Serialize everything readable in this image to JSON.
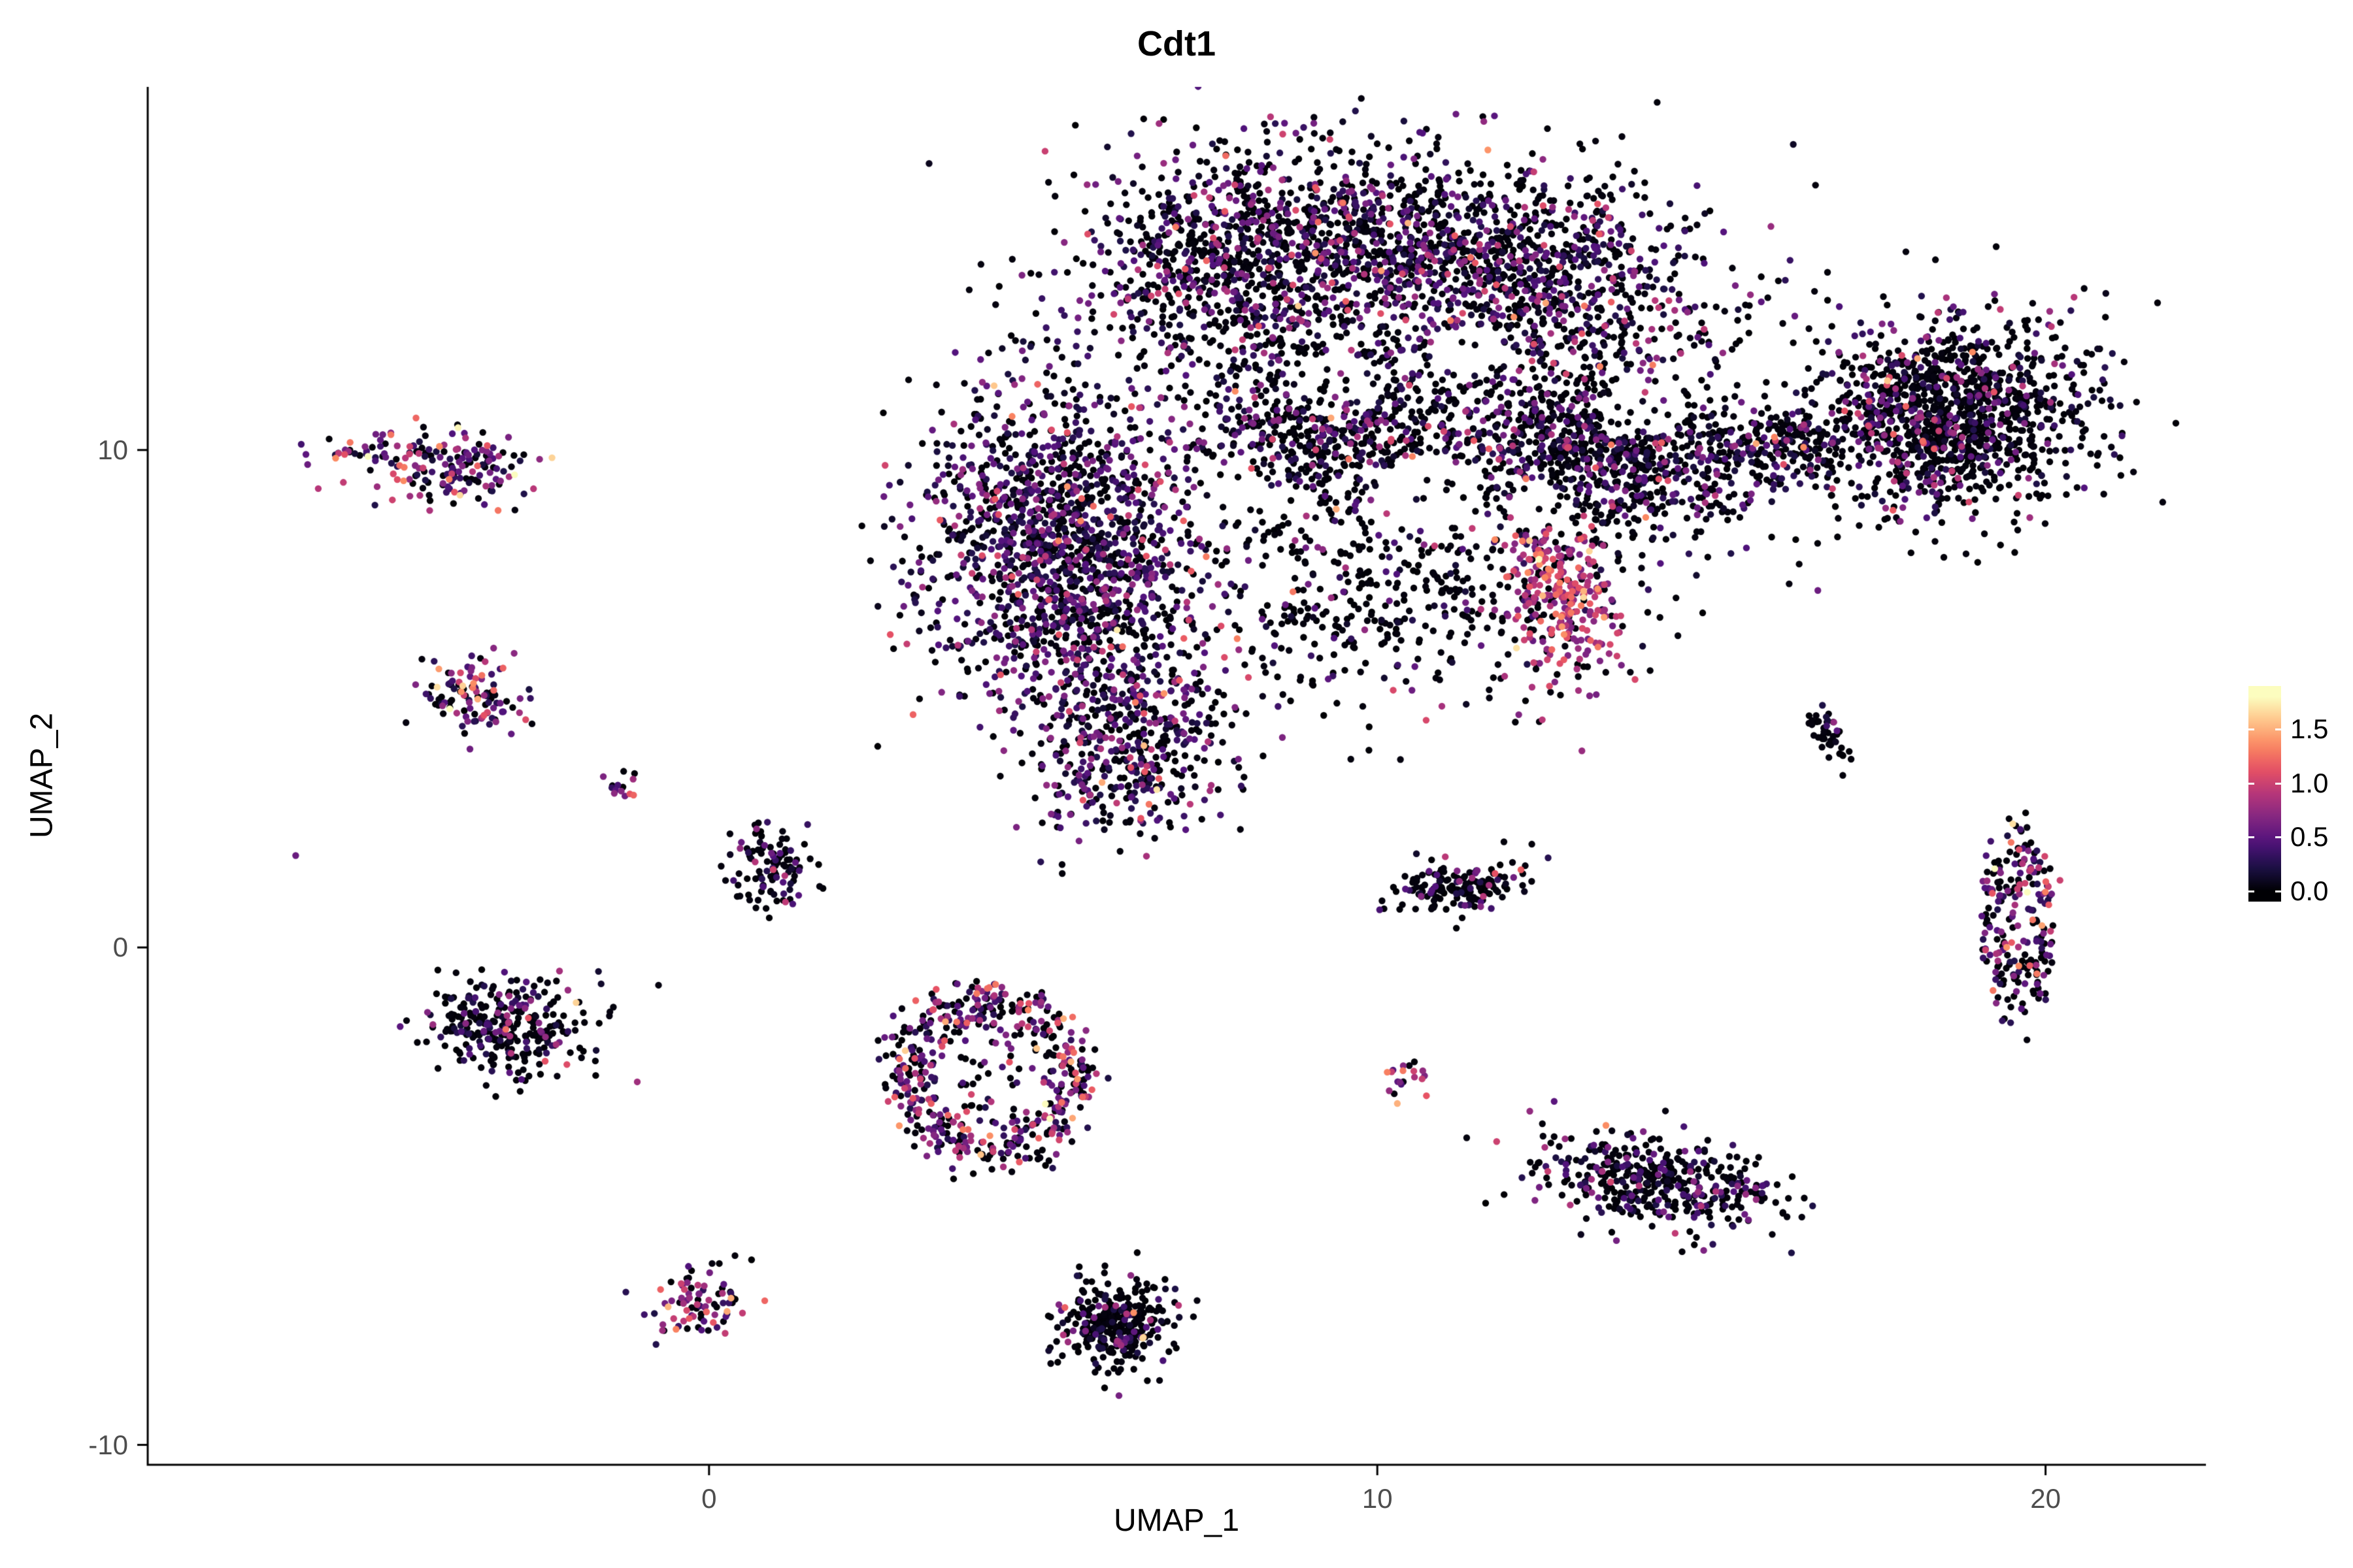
{
  "figure": {
    "background": "#ffffff"
  },
  "chart_data": {
    "type": "scatter",
    "title": "Cdt1",
    "xlabel": "UMAP_1",
    "ylabel": "UMAP_2",
    "xlim": [
      -8.4,
      22.4
    ],
    "ylim": [
      -10.4,
      17.3
    ],
    "grid": false,
    "legend_position": "right",
    "point_radius": 5.2,
    "seed": 42,
    "value_domain": [
      0,
      1.8
    ],
    "xticks": [
      {
        "label": "0",
        "value": 0
      },
      {
        "label": "10",
        "value": 10
      },
      {
        "label": "20",
        "value": 20
      }
    ],
    "yticks": [
      {
        "label": "-10",
        "value": -10
      },
      {
        "label": "0",
        "value": 0
      },
      {
        "label": "10",
        "value": 10
      }
    ],
    "colormap": {
      "name": "magma",
      "stops": [
        [
          0.0,
          "#000004"
        ],
        [
          0.125,
          "#1d1147"
        ],
        [
          0.25,
          "#51127c"
        ],
        [
          0.375,
          "#822681"
        ],
        [
          0.5,
          "#b63679"
        ],
        [
          0.625,
          "#e65164"
        ],
        [
          0.75,
          "#fb8861"
        ],
        [
          0.875,
          "#fec489"
        ],
        [
          1.0,
          "#fcfdbf"
        ]
      ]
    },
    "colorbar": {
      "range": [
        -0.1,
        1.9
      ],
      "ticks": [
        {
          "label": "1.5",
          "value": 1.5
        },
        {
          "label": "1.0",
          "value": 1.0
        },
        {
          "label": "0.5",
          "value": 0.5
        },
        {
          "label": "0.0",
          "value": 0.0
        }
      ]
    },
    "voids": [
      {
        "center": [
          9.4,
          11.3
        ],
        "r": 0.7
      },
      {
        "center": [
          14.0,
          10.9
        ],
        "r": 0.65
      },
      {
        "center": [
          11.4,
          12.0
        ],
        "r": 0.5
      },
      {
        "center": [
          10.8,
          9.2
        ],
        "r": 0.75
      },
      {
        "center": [
          12.4,
          8.9
        ],
        "r": 0.45
      }
    ],
    "clusters": [
      {
        "name": "main-top-left-arc",
        "shape": "blob",
        "center": [
          8.3,
          13.9
        ],
        "sx": 1.5,
        "sy": 1.1,
        "rot": 15,
        "n": 1200,
        "expr": {
          "p0": 0.55
        }
      },
      {
        "name": "main-top-right-arc",
        "shape": "blob",
        "center": [
          12.0,
          13.6
        ],
        "sx": 1.6,
        "sy": 1.0,
        "rot": -15,
        "n": 1200,
        "expr": {
          "p0": 0.58
        }
      },
      {
        "name": "main-left-lobe",
        "shape": "blob",
        "center": [
          5.3,
          8.0
        ],
        "sx": 1.0,
        "sy": 1.7,
        "rot": 5,
        "n": 1600,
        "expr": {
          "p0": 0.45
        }
      },
      {
        "name": "main-mid-right",
        "shape": "blob",
        "center": [
          13.3,
          10.0
        ],
        "sx": 1.3,
        "sy": 0.85,
        "rot": -10,
        "n": 1100,
        "expr": {
          "p0": 0.62
        }
      },
      {
        "name": "main-center",
        "shape": "blob",
        "center": [
          9.2,
          10.6
        ],
        "sx": 1.0,
        "sy": 0.8,
        "rot": 0,
        "n": 700,
        "expr": {
          "p0": 0.6
        }
      },
      {
        "name": "main-lower-scatter",
        "shape": "blob",
        "center": [
          10.1,
          7.2
        ],
        "sx": 2.0,
        "sy": 1.3,
        "rot": 0,
        "n": 550,
        "expr": {
          "p0": 0.78
        }
      },
      {
        "name": "main-tail",
        "shape": "blob",
        "center": [
          6.3,
          4.1
        ],
        "sx": 0.7,
        "sy": 0.95,
        "rot": -10,
        "n": 420,
        "expr": {
          "p0": 0.45,
          "sigma": 0.5
        }
      },
      {
        "name": "hotspot",
        "shape": "blob",
        "center": [
          12.8,
          7.0
        ],
        "sx": 0.38,
        "sy": 0.8,
        "rot": 10,
        "n": 260,
        "expr": {
          "p0": 0.12,
          "base": 0.6,
          "sigma": 0.4
        }
      },
      {
        "name": "wing-neck",
        "shape": "blob",
        "center": [
          16.1,
          10.1
        ],
        "sx": 0.5,
        "sy": 0.32,
        "rot": 20,
        "n": 150,
        "expr": {
          "p0": 0.7
        }
      },
      {
        "name": "wing-body",
        "shape": "blob",
        "center": [
          18.6,
          10.7
        ],
        "sx": 1.1,
        "sy": 0.95,
        "rot": 20,
        "n": 1250,
        "expr": {
          "p0": 0.72
        }
      },
      {
        "name": "island-top-left",
        "shape": "blob",
        "center": [
          -4.0,
          9.7
        ],
        "sx": 0.72,
        "sy": 0.4,
        "rot": -8,
        "n": 170,
        "expr": {
          "p0": 0.3,
          "base": 0.15,
          "sigma": 0.6
        }
      },
      {
        "name": "island-top-left-tip",
        "shape": "blob",
        "center": [
          -5.3,
          9.9
        ],
        "sx": 0.18,
        "sy": 0.14,
        "rot": 0,
        "n": 15,
        "expr": {
          "p0": 0.3,
          "base": 0.15,
          "sigma": 0.6
        }
      },
      {
        "name": "island-left-upper",
        "shape": "blob",
        "center": [
          -3.5,
          5.0
        ],
        "sx": 0.4,
        "sy": 0.42,
        "rot": 0,
        "n": 110,
        "expr": {
          "p0": 0.35,
          "base": 0.15,
          "sigma": 0.6
        }
      },
      {
        "name": "island-tiny-upper",
        "shape": "blob",
        "center": [
          -1.3,
          3.2
        ],
        "sx": 0.12,
        "sy": 0.18,
        "rot": 0,
        "n": 14,
        "expr": {
          "p0": 0.3,
          "base": 0.2,
          "sigma": 0.5
        }
      },
      {
        "name": "island-center-small",
        "shape": "blob",
        "center": [
          0.95,
          1.6
        ],
        "sx": 0.32,
        "sy": 0.42,
        "rot": 0,
        "n": 110,
        "expr": {
          "p0": 0.6
        }
      },
      {
        "name": "lone-dot",
        "shape": "blob",
        "center": [
          -6.2,
          1.85
        ],
        "sx": 0.04,
        "sy": 0.04,
        "rot": 0,
        "n": 1,
        "expr": {
          "p0": 0,
          "base": 0.55,
          "sigma": 0.05
        }
      },
      {
        "name": "island-left-mid",
        "shape": "blob",
        "center": [
          -3.0,
          -1.6
        ],
        "sx": 0.6,
        "sy": 0.5,
        "rot": -15,
        "n": 300,
        "expr": {
          "p0": 0.68
        }
      },
      {
        "name": "ring-cluster",
        "shape": "ring",
        "center": [
          4.2,
          -2.6
        ],
        "rx": 1.25,
        "ry": 1.5,
        "ring_width": 0.18,
        "n": 500,
        "expr": {
          "p0": 0.4,
          "base": 0.2,
          "sigma": 0.6
        }
      },
      {
        "name": "ring-inner",
        "shape": "blob",
        "center": [
          4.2,
          -2.6
        ],
        "sx": 0.5,
        "sy": 0.6,
        "rot": 0,
        "n": 45,
        "expr": {
          "p0": 0.5,
          "base": 0.2,
          "sigma": 0.5
        }
      },
      {
        "name": "island-mid-right",
        "shape": "blob",
        "center": [
          11.2,
          1.2
        ],
        "sx": 0.52,
        "sy": 0.26,
        "rot": 12,
        "n": 170,
        "expr": {
          "p0": 0.75
        }
      },
      {
        "name": "island-tiny-mid",
        "shape": "blob",
        "center": [
          10.4,
          -2.6
        ],
        "sx": 0.15,
        "sy": 0.2,
        "rot": -30,
        "n": 20,
        "expr": {
          "p0": 0.25,
          "base": 0.35,
          "sigma": 0.6
        }
      },
      {
        "name": "island-right-low",
        "shape": "blob",
        "center": [
          14.2,
          -4.7
        ],
        "sx": 1.0,
        "sy": 0.45,
        "rot": -12,
        "n": 430,
        "expr": {
          "p0": 0.62
        }
      },
      {
        "name": "island-bottom-left",
        "shape": "blob",
        "center": [
          -0.1,
          -7.1
        ],
        "sx": 0.38,
        "sy": 0.3,
        "rot": 35,
        "n": 85,
        "expr": {
          "p0": 0.35,
          "base": 0.2,
          "sigma": 0.6
        }
      },
      {
        "name": "island-bottom-mid",
        "shape": "blob",
        "center": [
          6.1,
          -7.6
        ],
        "sx": 0.42,
        "sy": 0.45,
        "rot": 0,
        "n": 310,
        "expr": {
          "p0": 0.8
        }
      },
      {
        "name": "island-bottom-mid-bright",
        "shape": "blob",
        "center": [
          6.5,
          -7.9
        ],
        "sx": 0.05,
        "sy": 0.05,
        "rot": 0,
        "n": 2,
        "expr": {
          "p0": 0,
          "base": 1.5,
          "sigma": 0.15
        }
      },
      {
        "name": "island-streak",
        "shape": "blob",
        "center": [
          16.75,
          4.3
        ],
        "sx": 0.1,
        "sy": 0.32,
        "rot": 20,
        "n": 45,
        "expr": {
          "p0": 0.85
        }
      },
      {
        "name": "island-right-ring",
        "shape": "ring",
        "center": [
          19.6,
          0.5
        ],
        "rx": 0.4,
        "ry": 1.3,
        "ring_width": 0.3,
        "n": 230,
        "expr": {
          "p0": 0.45,
          "base": 0.2,
          "sigma": 0.55
        }
      }
    ]
  }
}
